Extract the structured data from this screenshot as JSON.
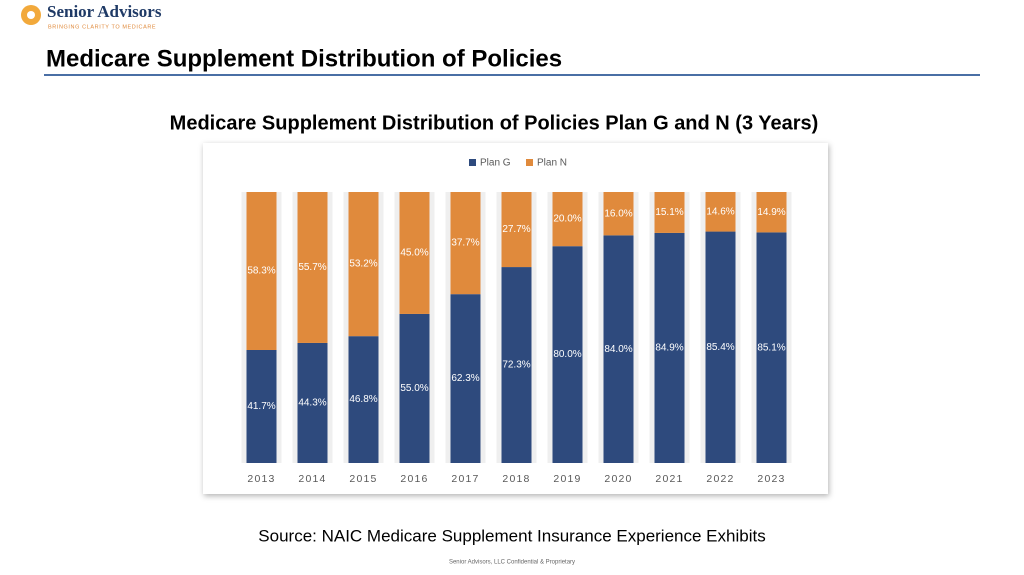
{
  "logo": {
    "name": "Senior Advisors",
    "tagline": "BRINGING CLARITY TO MEDICARE"
  },
  "slide_title": "Medicare Supplement Distribution of Policies",
  "chart_data": {
    "type": "stacked_bar_100",
    "title": "Medicare Supplement Distribution of Policies Plan G and N (3 Years)",
    "categories": [
      "2013",
      "2014",
      "2015",
      "2016",
      "2017",
      "2018",
      "2019",
      "2020",
      "2021",
      "2022",
      "2023"
    ],
    "series": [
      {
        "name": "Plan G",
        "color": "#2e4a7d",
        "values": [
          41.7,
          44.3,
          46.8,
          55,
          62.3,
          72.3,
          80,
          84,
          84.9,
          85.4,
          85.1
        ],
        "value_labels": [
          "41.7%",
          "44.3%",
          "46.8%",
          "55.0%",
          "62.3%",
          "72.3%",
          "80.0%",
          "84.0%",
          "84.9%",
          "85.4%",
          "85.1%"
        ]
      },
      {
        "name": "Plan N",
        "color": "#e08a3c",
        "values": [
          58.3,
          55.7,
          53.2,
          45,
          37.7,
          27.7,
          20,
          16,
          15.1,
          14.6,
          14.9
        ],
        "value_labels": [
          "58.3%",
          "55.7%",
          "53.2%",
          "45.0%",
          "37.7%",
          "27.7%",
          "20.0%",
          "16.0%",
          "15.1%",
          "14.6%",
          "14.9%"
        ]
      }
    ],
    "legend": "top"
  },
  "source": "Source: NAIC Medicare Supplement Insurance Experience Exhibits",
  "footer": "Senior Advisors, LLC Confidential & Proprietary"
}
